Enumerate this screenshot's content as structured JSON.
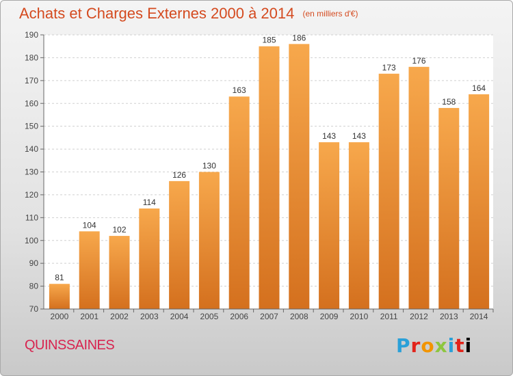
{
  "header": {
    "title": "Achats et Charges Externes 2000 à 2014",
    "subtitle": "(en milliers d'€)"
  },
  "footer": {
    "town": "QUINSSAINES",
    "logo_text": "Proxiti"
  },
  "colors": {
    "bar_light": "#f7a84c",
    "bar_dark": "#d4701e",
    "title": "#d44a1f",
    "town": "#d8234f"
  },
  "chart_data": {
    "type": "bar",
    "title": "Achats et Charges Externes 2000 à 2014",
    "subtitle": "(en milliers d'€)",
    "xlabel": "",
    "ylabel": "",
    "categories": [
      "2000",
      "2001",
      "2002",
      "2003",
      "2004",
      "2005",
      "2006",
      "2007",
      "2008",
      "2009",
      "2010",
      "2011",
      "2012",
      "2013",
      "2014"
    ],
    "values": [
      81,
      104,
      102,
      114,
      126,
      130,
      163,
      185,
      186,
      143,
      143,
      173,
      176,
      158,
      164
    ],
    "ylim": [
      70,
      190
    ],
    "yticks": [
      70,
      80,
      90,
      100,
      110,
      120,
      130,
      140,
      150,
      160,
      170,
      180,
      190
    ],
    "grid": true,
    "data_labels": true
  }
}
